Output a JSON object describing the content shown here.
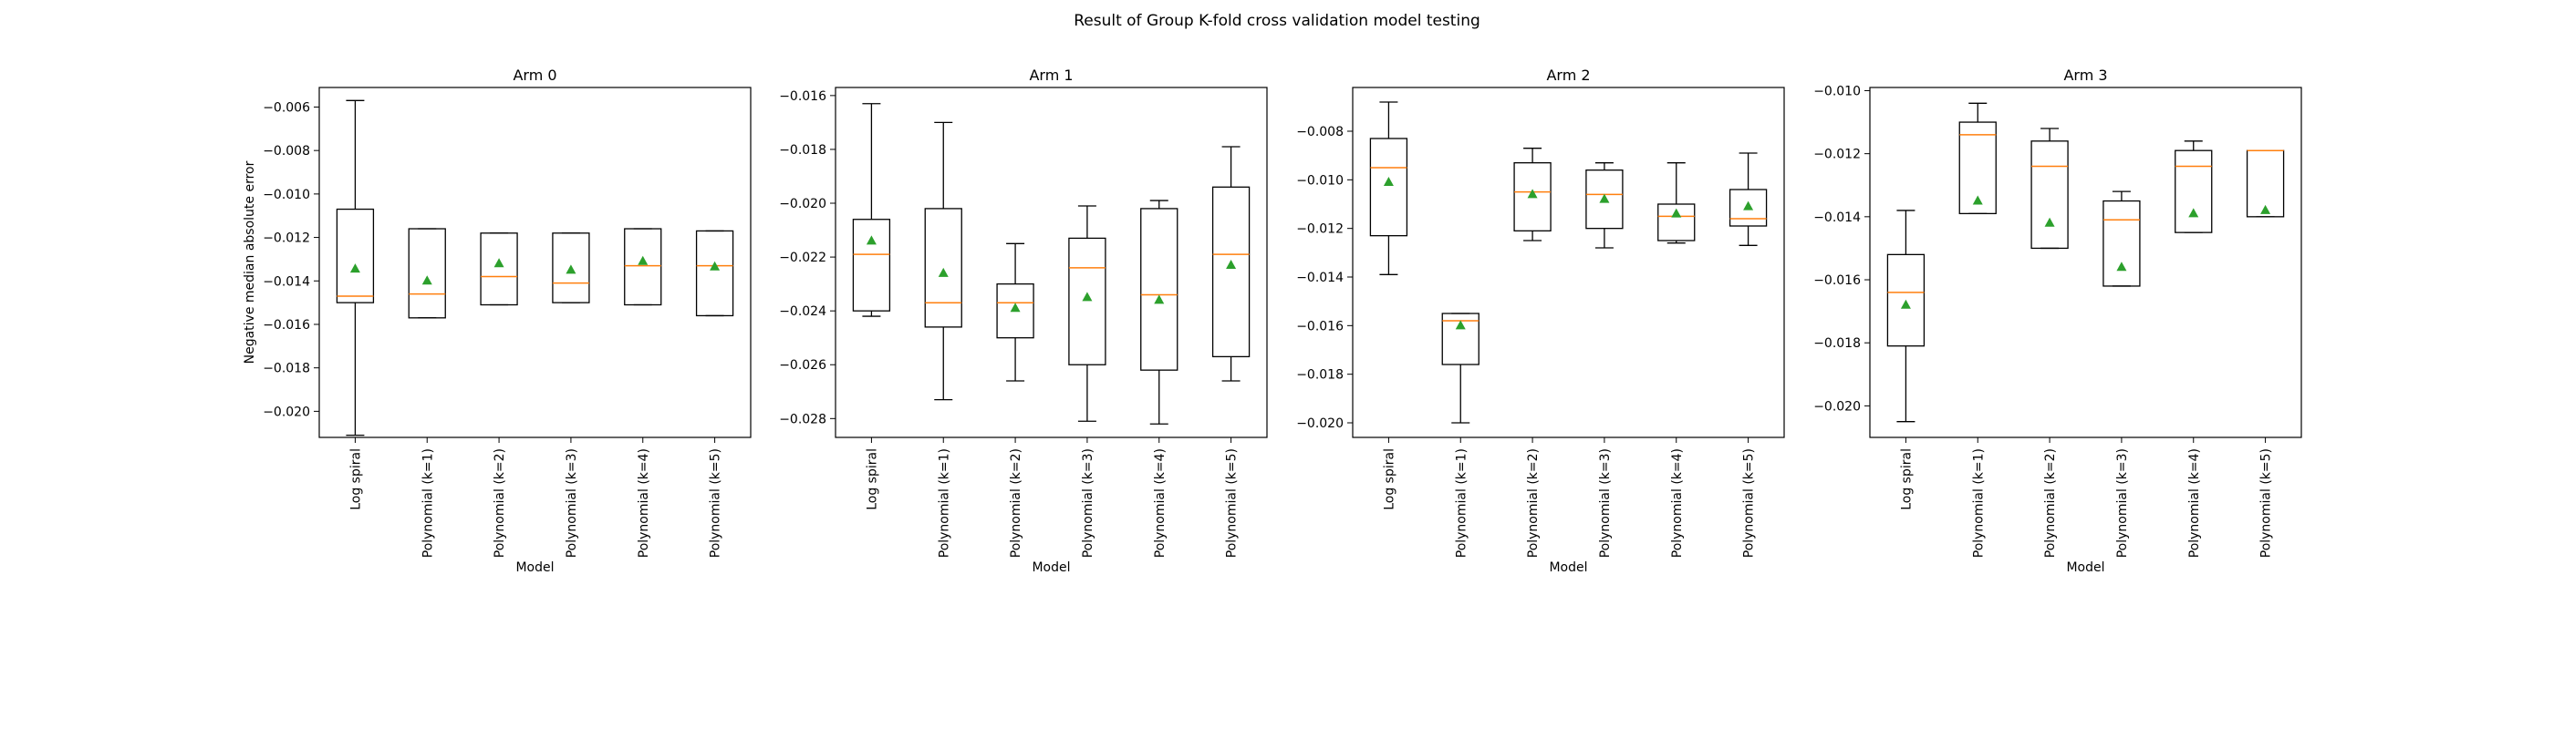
{
  "figure": {
    "suptitle": "Result of Group K-fold cross validation model testing"
  },
  "colors": {
    "median": "#ff7f0e",
    "mean_marker": "#2ca02c",
    "box": "#000000"
  },
  "chart_data": [
    {
      "type": "box",
      "title": "Arm 0",
      "xlabel": "Model",
      "ylabel": "Negative median absolute error",
      "categories": [
        "Log spiral",
        "Polynomial (k=1)",
        "Polynomial (k=2)",
        "Polynomial (k=3)",
        "Polynomial (k=4)",
        "Polynomial (k=5)"
      ],
      "ylim": [
        -0.0212,
        -0.0051
      ],
      "yticks": [
        -0.02,
        -0.018,
        -0.016,
        -0.014,
        -0.012,
        -0.01,
        -0.008,
        -0.006
      ],
      "ytick_labels": [
        "−0.020",
        "−0.018",
        "−0.016",
        "−0.014",
        "−0.012",
        "−0.010",
        "−0.008",
        "−0.006"
      ],
      "boxes": [
        {
          "whislo": -0.0211,
          "q1": -0.015,
          "med": -0.0147,
          "q3": -0.0107,
          "whishi": -0.0057,
          "mean": -0.01345
        },
        {
          "whislo": -0.0157,
          "q1": -0.0157,
          "med": -0.0146,
          "q3": -0.0116,
          "whishi": -0.0116,
          "mean": -0.014
        },
        {
          "whislo": -0.0151,
          "q1": -0.0151,
          "med": -0.0138,
          "q3": -0.0118,
          "whishi": -0.0118,
          "mean": -0.0132
        },
        {
          "whislo": -0.015,
          "q1": -0.015,
          "med": -0.0141,
          "q3": -0.0118,
          "whishi": -0.0118,
          "mean": -0.0135
        },
        {
          "whislo": -0.0151,
          "q1": -0.0151,
          "med": -0.0133,
          "q3": -0.0116,
          "whishi": -0.0116,
          "mean": -0.0131
        },
        {
          "whislo": -0.0156,
          "q1": -0.0156,
          "med": -0.0133,
          "q3": -0.0117,
          "whishi": -0.0117,
          "mean": -0.01335
        }
      ]
    },
    {
      "type": "box",
      "title": "Arm 1",
      "xlabel": "Model",
      "ylabel": "",
      "categories": [
        "Log spiral",
        "Polynomial (k=1)",
        "Polynomial (k=2)",
        "Polynomial (k=3)",
        "Polynomial (k=4)",
        "Polynomial (k=5)"
      ],
      "ylim": [
        -0.0287,
        -0.0157
      ],
      "yticks": [
        -0.028,
        -0.026,
        -0.024,
        -0.022,
        -0.02,
        -0.018,
        -0.016
      ],
      "ytick_labels": [
        "−0.028",
        "−0.026",
        "−0.024",
        "−0.022",
        "−0.020",
        "−0.018",
        "−0.016"
      ],
      "boxes": [
        {
          "whislo": -0.0242,
          "q1": -0.024,
          "med": -0.0219,
          "q3": -0.0206,
          "whishi": -0.0163,
          "mean": -0.0214
        },
        {
          "whislo": -0.0273,
          "q1": -0.0246,
          "med": -0.0237,
          "q3": -0.0202,
          "whishi": -0.017,
          "mean": -0.0226
        },
        {
          "whislo": -0.0266,
          "q1": -0.025,
          "med": -0.0237,
          "q3": -0.023,
          "whishi": -0.0215,
          "mean": -0.0239
        },
        {
          "whislo": -0.0281,
          "q1": -0.026,
          "med": -0.0224,
          "q3": -0.0213,
          "whishi": -0.0201,
          "mean": -0.0235
        },
        {
          "whislo": -0.0282,
          "q1": -0.0262,
          "med": -0.0234,
          "q3": -0.0202,
          "whishi": -0.0199,
          "mean": -0.0236
        },
        {
          "whislo": -0.0266,
          "q1": -0.0257,
          "med": -0.0219,
          "q3": -0.0194,
          "whishi": -0.0179,
          "mean": -0.0223
        }
      ]
    },
    {
      "type": "box",
      "title": "Arm 2",
      "xlabel": "Model",
      "ylabel": "",
      "categories": [
        "Log spiral",
        "Polynomial (k=1)",
        "Polynomial (k=2)",
        "Polynomial (k=3)",
        "Polynomial (k=4)",
        "Polynomial (k=5)"
      ],
      "ylim": [
        -0.0206,
        -0.0062
      ],
      "yticks": [
        -0.02,
        -0.018,
        -0.016,
        -0.014,
        -0.012,
        -0.01,
        -0.008
      ],
      "ytick_labels": [
        "−0.020",
        "−0.018",
        "−0.016",
        "−0.014",
        "−0.012",
        "−0.010",
        "−0.008"
      ],
      "boxes": [
        {
          "whislo": -0.0139,
          "q1": -0.0123,
          "med": -0.0095,
          "q3": -0.0083,
          "whishi": -0.0068,
          "mean": -0.0101
        },
        {
          "whislo": -0.02,
          "q1": -0.0176,
          "med": -0.0158,
          "q3": -0.0155,
          "whishi": -0.0155,
          "mean": -0.016
        },
        {
          "whislo": -0.0125,
          "q1": -0.0121,
          "med": -0.0105,
          "q3": -0.0093,
          "whishi": -0.0087,
          "mean": -0.0106
        },
        {
          "whislo": -0.0128,
          "q1": -0.012,
          "med": -0.0106,
          "q3": -0.0096,
          "whishi": -0.0093,
          "mean": -0.0108
        },
        {
          "whislo": -0.0126,
          "q1": -0.0125,
          "med": -0.0115,
          "q3": -0.011,
          "whishi": -0.0093,
          "mean": -0.0114
        },
        {
          "whislo": -0.0127,
          "q1": -0.0119,
          "med": -0.0116,
          "q3": -0.0104,
          "whishi": -0.0089,
          "mean": -0.0111
        }
      ]
    },
    {
      "type": "box",
      "title": "Arm 3",
      "xlabel": "Model",
      "ylabel": "",
      "categories": [
        "Log spiral",
        "Polynomial (k=1)",
        "Polynomial (k=2)",
        "Polynomial (k=3)",
        "Polynomial (k=4)",
        "Polynomial (k=5)"
      ],
      "ylim": [
        -0.021,
        -0.0099
      ],
      "yticks": [
        -0.02,
        -0.018,
        -0.016,
        -0.014,
        -0.012,
        -0.01
      ],
      "ytick_labels": [
        "−0.020",
        "−0.018",
        "−0.016",
        "−0.014",
        "−0.012",
        "−0.010"
      ],
      "boxes": [
        {
          "whislo": -0.0205,
          "q1": -0.0181,
          "med": -0.0164,
          "q3": -0.0152,
          "whishi": -0.0138,
          "mean": -0.0168
        },
        {
          "whislo": -0.0139,
          "q1": -0.0139,
          "med": -0.0114,
          "q3": -0.011,
          "whishi": -0.0104,
          "mean": -0.0135
        },
        {
          "whislo": -0.015,
          "q1": -0.015,
          "med": -0.0124,
          "q3": -0.0116,
          "whishi": -0.0112,
          "mean": -0.0142
        },
        {
          "whislo": -0.0162,
          "q1": -0.0162,
          "med": -0.0141,
          "q3": -0.0135,
          "whishi": -0.0132,
          "mean": -0.0156
        },
        {
          "whislo": -0.0145,
          "q1": -0.0145,
          "med": -0.0124,
          "q3": -0.0119,
          "whishi": -0.0116,
          "mean": -0.0139
        },
        {
          "whislo": -0.014,
          "q1": -0.014,
          "med": -0.0119,
          "q3": -0.0119,
          "whishi": -0.0119,
          "mean": -0.0138
        }
      ]
    }
  ]
}
